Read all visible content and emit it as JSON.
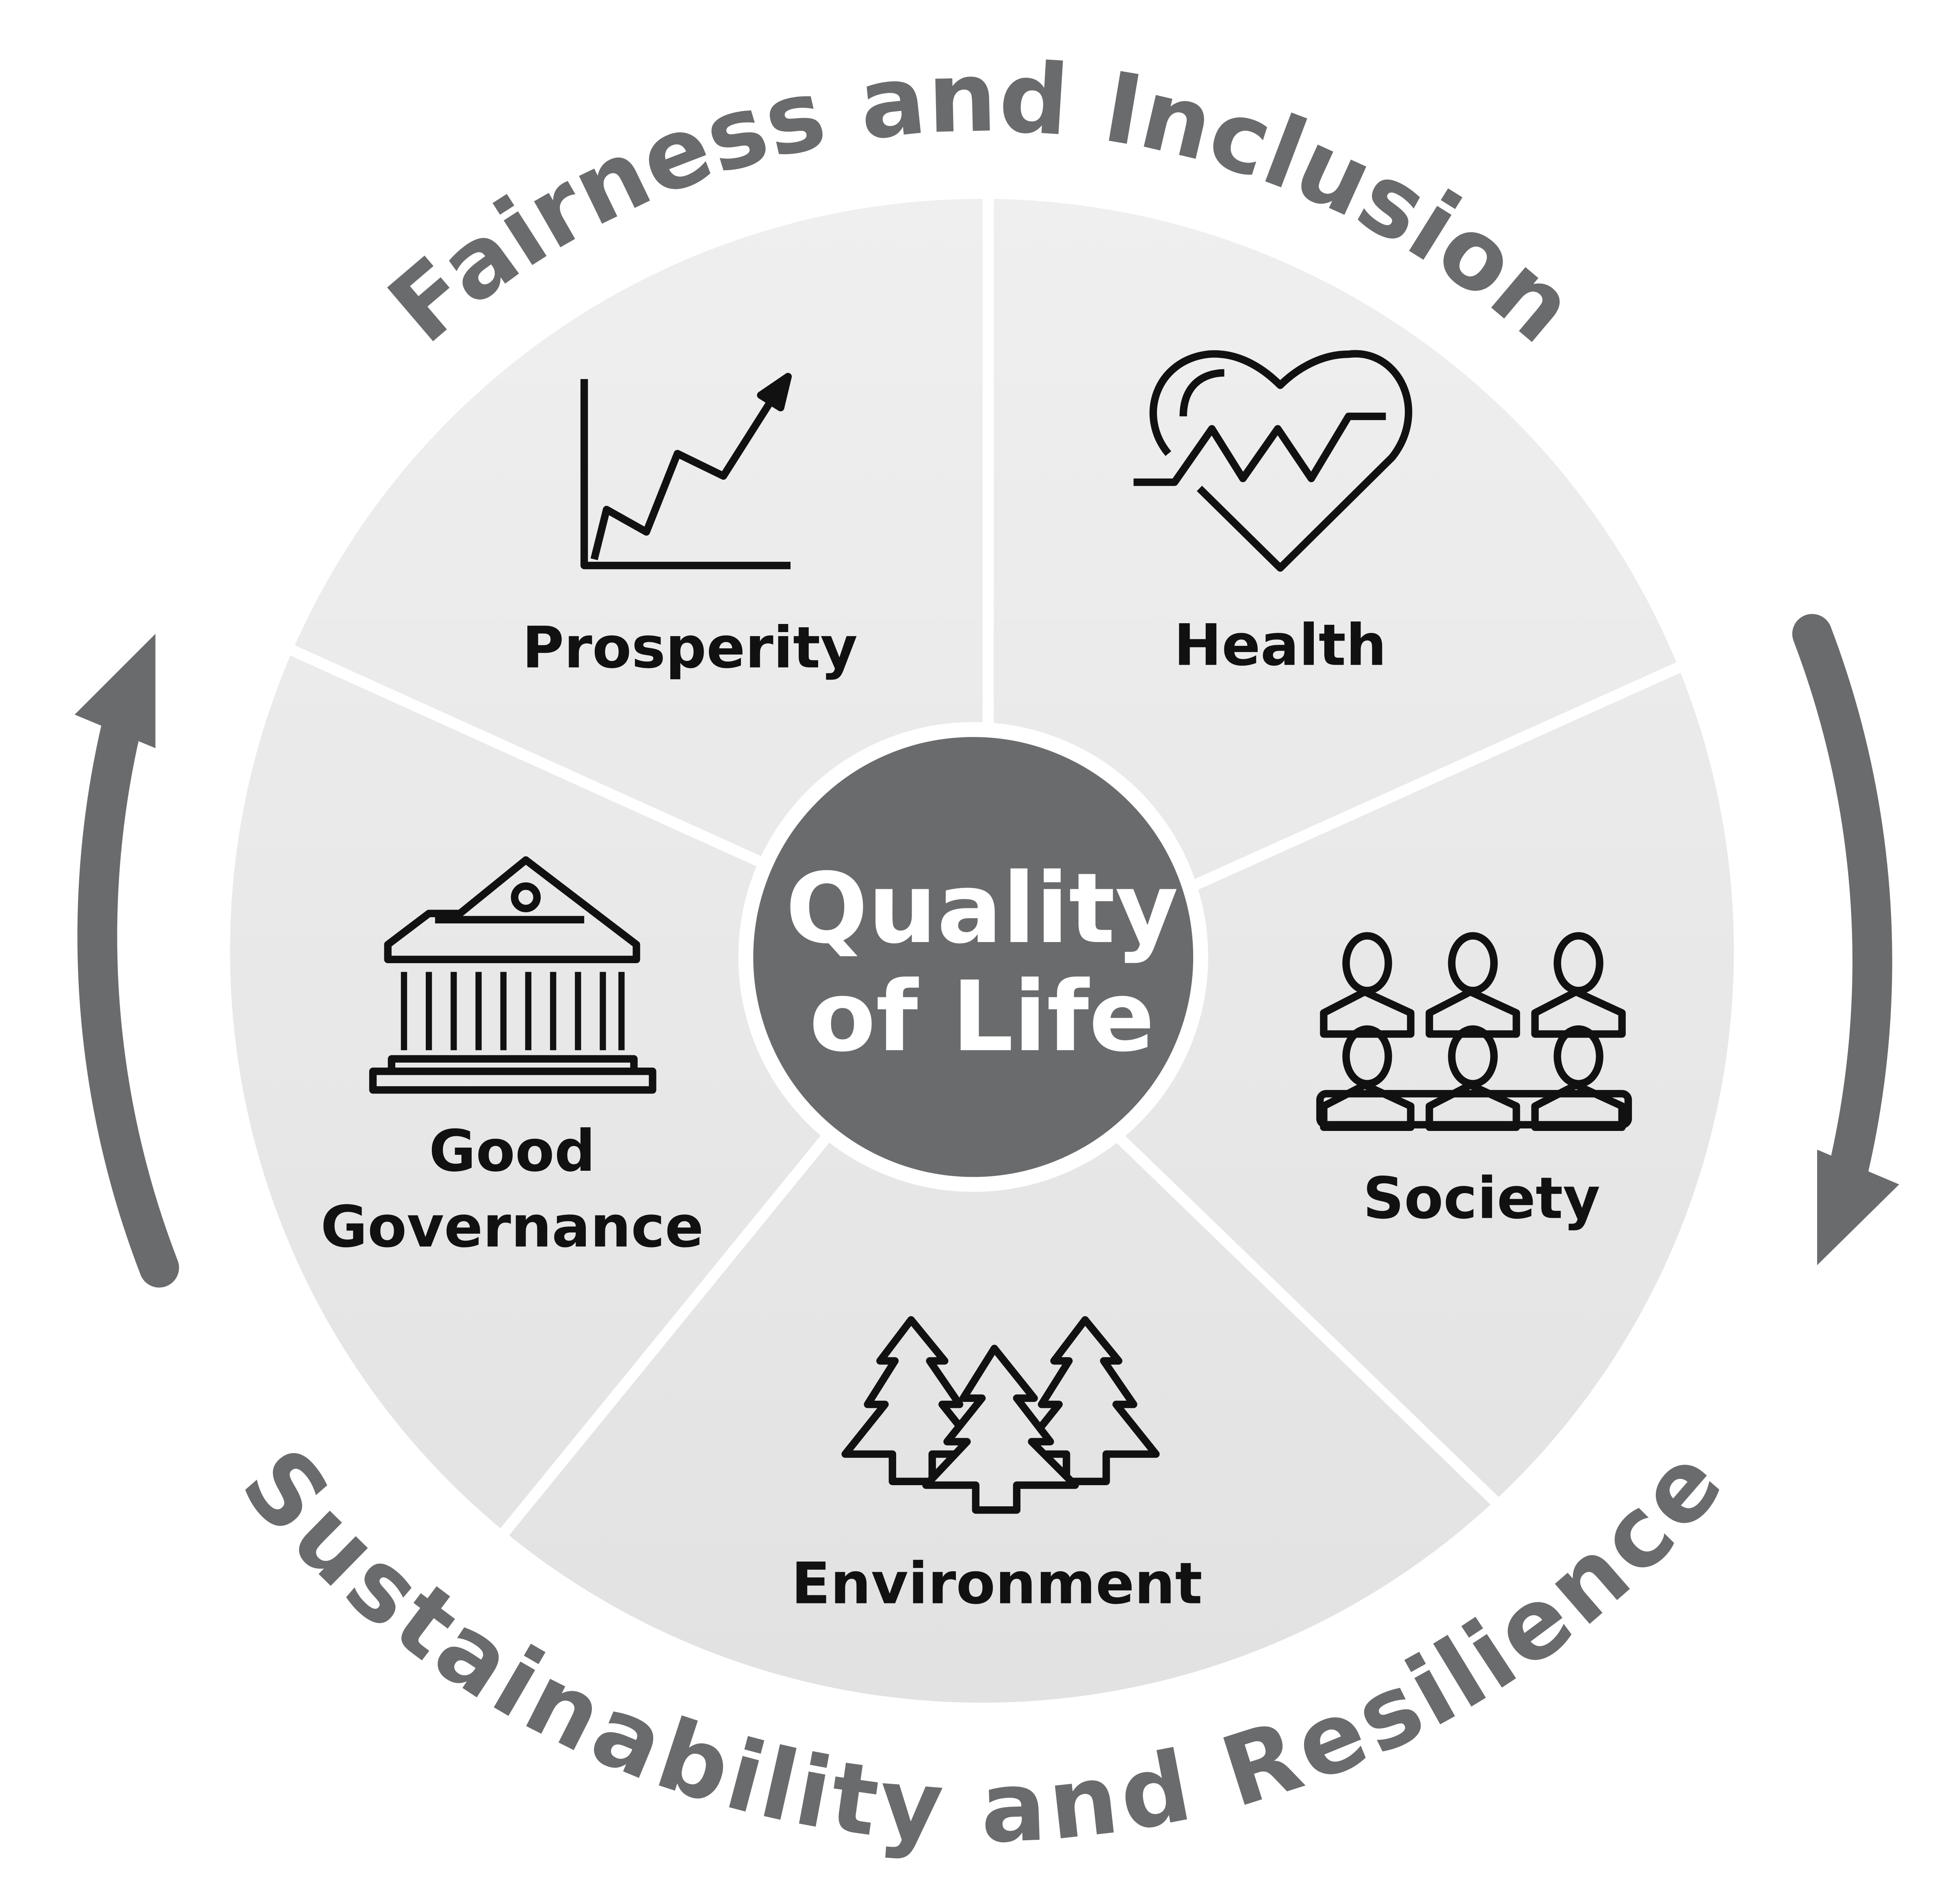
{
  "center": {
    "lines": [
      "Quality",
      "of Life"
    ]
  },
  "segments": [
    {
      "lines": [
        "Prosperity"
      ]
    },
    {
      "lines": [
        "Health"
      ]
    },
    {
      "lines": [
        "Society"
      ]
    },
    {
      "lines": [
        "Environment"
      ]
    },
    {
      "lines": [
        "Good",
        "Governance"
      ]
    }
  ],
  "arcs": {
    "top": "Fairness and Inclusion",
    "bottom": "Sustainability and Resilience"
  }
}
